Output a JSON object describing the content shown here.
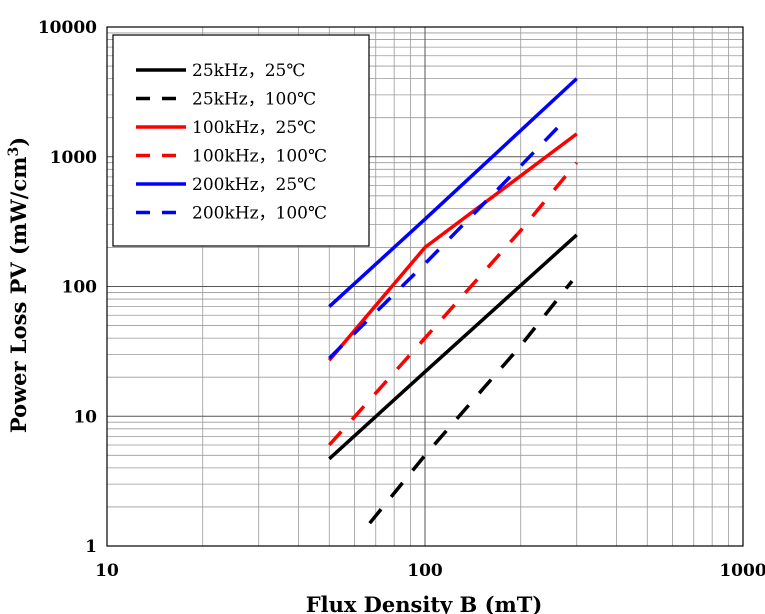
{
  "chart_data": {
    "type": "line",
    "title": "",
    "xlabel": "Flux Density B (mT)",
    "ylabel_main": "Power Loss PV (mW/cm",
    "ylabel_sup": "3",
    "ylabel_tail": ")",
    "x_scale": "log",
    "y_scale": "log",
    "xlim": [
      10,
      1000
    ],
    "ylim": [
      1,
      10000
    ],
    "grid": true,
    "legend_position": "top-left",
    "x_ticks": [
      {
        "value": 10,
        "label": "10"
      },
      {
        "value": 100,
        "label": "100"
      },
      {
        "value": 1000,
        "label": "1000"
      }
    ],
    "y_ticks": [
      {
        "value": 1,
        "label": "1"
      },
      {
        "value": 10,
        "label": "10"
      },
      {
        "value": 100,
        "label": "100"
      },
      {
        "value": 1000,
        "label": "1000"
      },
      {
        "value": 10000,
        "label": "10000"
      }
    ],
    "series": [
      {
        "name": "25kHz，25℃",
        "color": "#000000",
        "dash": false,
        "points": [
          [
            50,
            4.7
          ],
          [
            100,
            22
          ],
          [
            300,
            250
          ]
        ]
      },
      {
        "name": "25kHz，100℃",
        "color": "#000000",
        "dash": true,
        "points": [
          [
            67,
            1.5
          ],
          [
            100,
            5
          ],
          [
            200,
            35
          ],
          [
            290,
            110
          ]
        ]
      },
      {
        "name": "100kHz，25℃",
        "color": "#ff0000",
        "dash": false,
        "points": [
          [
            50,
            27
          ],
          [
            100,
            200
          ],
          [
            300,
            1500
          ]
        ]
      },
      {
        "name": "100kHz，100℃",
        "color": "#ff0000",
        "dash": true,
        "points": [
          [
            50,
            6
          ],
          [
            100,
            40
          ],
          [
            200,
            270
          ],
          [
            300,
            900
          ]
        ]
      },
      {
        "name": "200kHz，25℃",
        "color": "#0000ff",
        "dash": false,
        "points": [
          [
            50,
            70
          ],
          [
            100,
            330
          ],
          [
            300,
            4000
          ]
        ]
      },
      {
        "name": "200kHz，100℃",
        "color": "#0000ff",
        "dash": true,
        "points": [
          [
            50,
            28
          ],
          [
            100,
            150
          ],
          [
            200,
            850
          ],
          [
            280,
            2000
          ]
        ]
      }
    ]
  }
}
